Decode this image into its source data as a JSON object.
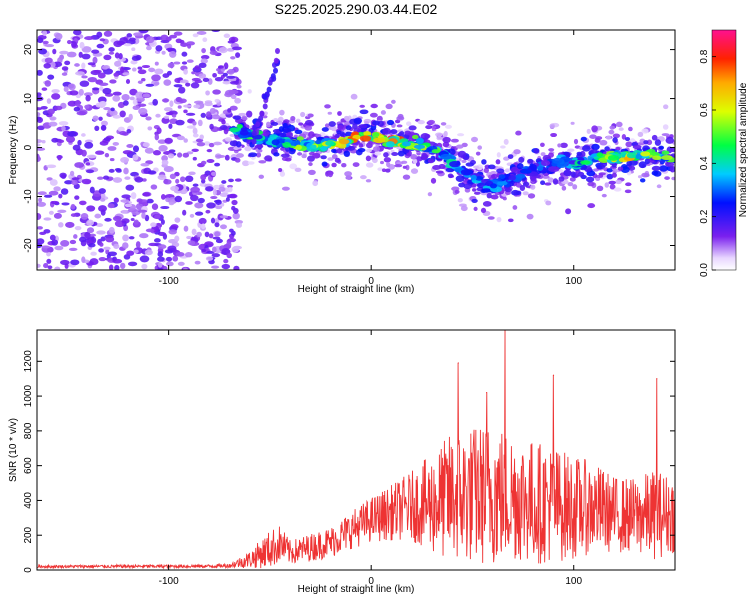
{
  "title": "S225.2025.290.03.44.E02",
  "chart_data": [
    {
      "type": "heatmap",
      "panel": "top",
      "xlabel": "Height of straight line (km)",
      "ylabel": "Frequency (Hz)",
      "xlim": [
        -165,
        150
      ],
      "ylim": [
        -25,
        24
      ],
      "xticks": [
        -100,
        0,
        100
      ],
      "yticks": [
        -20,
        -10,
        0,
        10,
        20
      ],
      "noise_region_x": [
        -165,
        -68
      ],
      "ridge": {
        "x": [
          -68,
          -55,
          -45,
          -35,
          -25,
          -15,
          -5,
          5,
          15,
          25,
          35,
          42,
          50,
          58,
          65,
          75,
          85,
          95,
          105,
          115,
          125,
          135,
          148
        ],
        "y": [
          4,
          2,
          1.5,
          0.5,
          0.5,
          1,
          2.5,
          2,
          1,
          0.5,
          -1,
          -4,
          -6,
          -8,
          -7,
          -5,
          -4,
          -3,
          -3,
          -2,
          -2,
          -1.5,
          -2
        ],
        "peak_amplitude": [
          0.45,
          0.5,
          0.4,
          0.6,
          0.55,
          0.7,
          0.9,
          0.85,
          0.75,
          0.6,
          0.5,
          0.4,
          0.35,
          0.4,
          0.35,
          0.3,
          0.3,
          0.35,
          0.45,
          0.6,
          0.7,
          0.6,
          0.55
        ]
      },
      "colorbar": {
        "label": "Normalized spectral amplitude",
        "range": [
          0,
          0.9
        ],
        "ticks": [
          "0.0",
          "0.2",
          "0.4",
          "0.6",
          "0.8"
        ]
      }
    },
    {
      "type": "line",
      "panel": "bottom",
      "xlabel": "Height of straight line (km)",
      "ylabel": "SNR (10 * v/v)",
      "xlim": [
        -165,
        150
      ],
      "ylim": [
        0,
        1380
      ],
      "xticks": [
        -100,
        0,
        100
      ],
      "yticks": [
        0,
        200,
        400,
        600,
        800,
        1000,
        1200
      ],
      "color": "#ee3333",
      "envelope": {
        "x": [
          -165,
          -80,
          -70,
          -60,
          -50,
          -45,
          -40,
          -30,
          -20,
          -10,
          0,
          10,
          20,
          30,
          40,
          50,
          60,
          65,
          70,
          80,
          90,
          100,
          110,
          120,
          130,
          140,
          150
        ],
        "mean": [
          20,
          22,
          25,
          60,
          120,
          150,
          100,
          130,
          160,
          230,
          290,
          330,
          370,
          380,
          420,
          430,
          440,
          430,
          430,
          390,
          380,
          360,
          360,
          320,
          310,
          320,
          320
        ],
        "spread": [
          8,
          10,
          12,
          50,
          110,
          110,
          70,
          80,
          90,
          110,
          130,
          160,
          200,
          290,
          380,
          400,
          420,
          400,
          380,
          360,
          340,
          300,
          260,
          220,
          220,
          260,
          220
        ]
      },
      "peaks": [
        {
          "x": 66,
          "y": 1390
        },
        {
          "x": 43,
          "y": 1190
        },
        {
          "x": 141,
          "y": 1100
        },
        {
          "x": 90,
          "y": 1120
        },
        {
          "x": 57,
          "y": 1020
        }
      ]
    }
  ]
}
